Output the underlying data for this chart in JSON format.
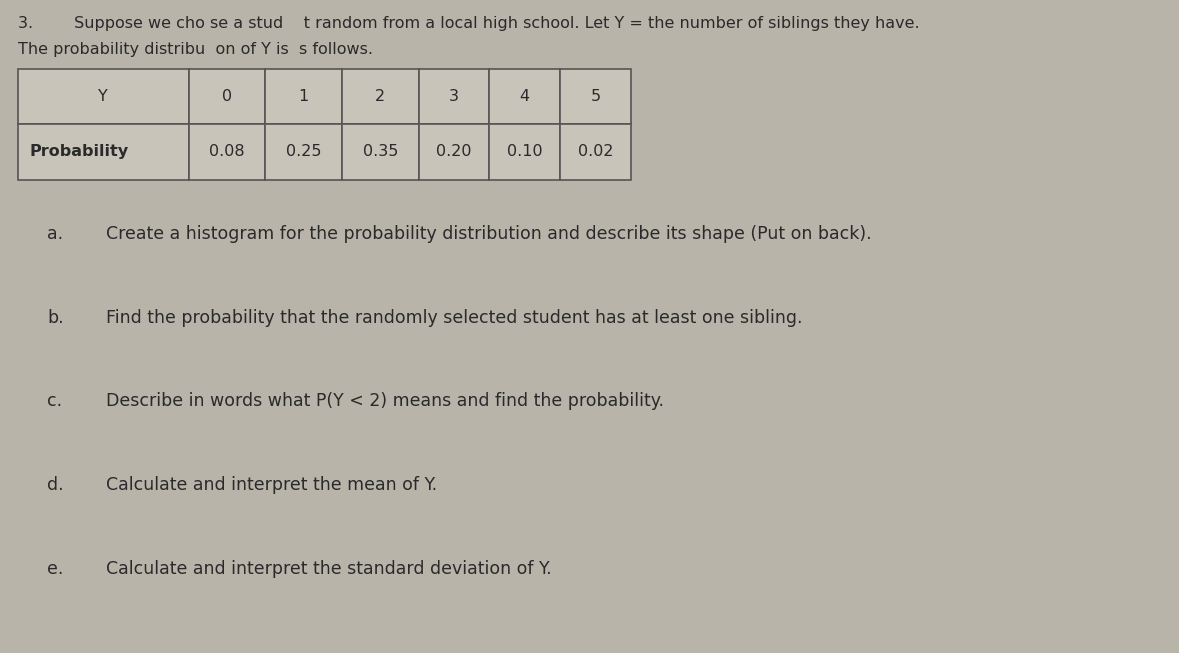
{
  "title_line1": "3.        Suppose we cho se a stud    t random from a local high school. Let Y = the number of siblings they have.",
  "title_line2": "The probability distribu  on of Y is  s follows.",
  "table_headers": [
    "Y",
    "0",
    "1",
    "2",
    "3",
    "4",
    "5"
  ],
  "table_row_label": "Probability",
  "table_values": [
    "0.08",
    "0.25",
    "0.35",
    "0.20",
    "0.10",
    "0.02"
  ],
  "questions": [
    {
      "label": "a.",
      "text": "Create a histogram for the probability distribution and describe its shape (Put on back)."
    },
    {
      "label": "b.",
      "text": "Find the probability that the randomly selected student has at least one sibling."
    },
    {
      "label": "c.",
      "text": "Describe in words what P(Y < 2) means and find the probability."
    },
    {
      "label": "d.",
      "text": "Calculate and interpret the mean of Y."
    },
    {
      "label": "e.",
      "text": "Calculate and interpret the standard deviation of Y."
    }
  ],
  "bg_color": "#b8b4aa",
  "text_color": "#2a2a2a",
  "table_bg": "#c8c4ba",
  "table_border": "#555555",
  "font_size_title": 11.5,
  "font_size_table": 11.5,
  "font_size_questions": 12.5
}
